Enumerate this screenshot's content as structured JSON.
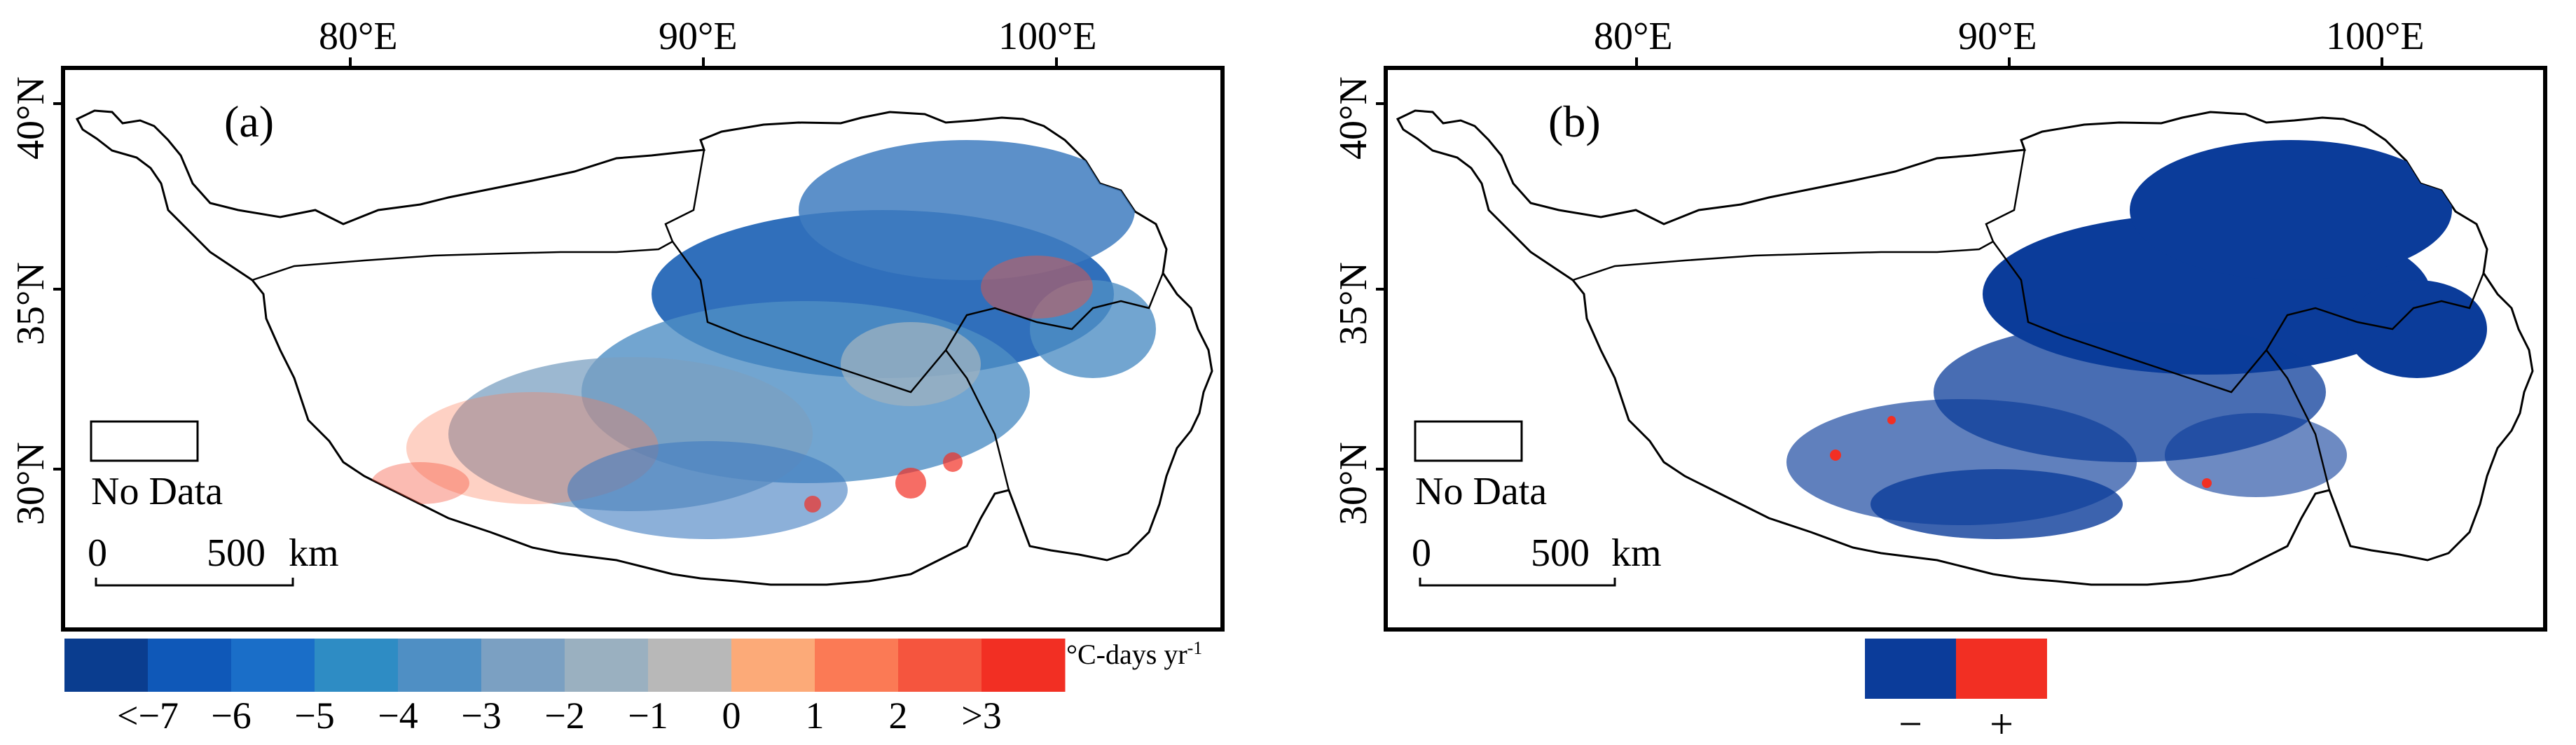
{
  "panels": [
    {
      "id": "a",
      "label": "(a)",
      "lon_ticks": [
        "80°E",
        "90°E",
        "100°E"
      ],
      "lat_ticks": [
        "40°N",
        "35°N",
        "30°N"
      ],
      "nodata_label": "No Data",
      "scalebar": {
        "start": "0",
        "end": "500",
        "unit": "km"
      },
      "legend": {
        "unit_main": "°C-days yr",
        "unit_sup": "-1",
        "colors": [
          "#0a3d8f",
          "#0f58b8",
          "#1a6ec8",
          "#2e8cc4",
          "#4f8fc4",
          "#7ba0c2",
          "#9ab0c0",
          "#b8b8b8",
          "#fcaa78",
          "#fb7a55",
          "#f5553e",
          "#f22f23"
        ],
        "labels": [
          "<−7",
          "−6",
          "−5",
          "−4",
          "−3",
          "−2",
          "−1",
          "0",
          "1",
          "2",
          ">3"
        ]
      }
    },
    {
      "id": "b",
      "label": "(b)",
      "lon_ticks": [
        "80°E",
        "90°E",
        "100°E"
      ],
      "lat_ticks": [
        "40°N",
        "35°N",
        "30°N"
      ],
      "nodata_label": "No Data",
      "scalebar": {
        "start": "0",
        "end": "500",
        "unit": "km"
      },
      "legend": {
        "colors": [
          "#0b3c9a",
          "#f22f23"
        ],
        "labels": [
          "−",
          "+"
        ]
      }
    }
  ]
}
